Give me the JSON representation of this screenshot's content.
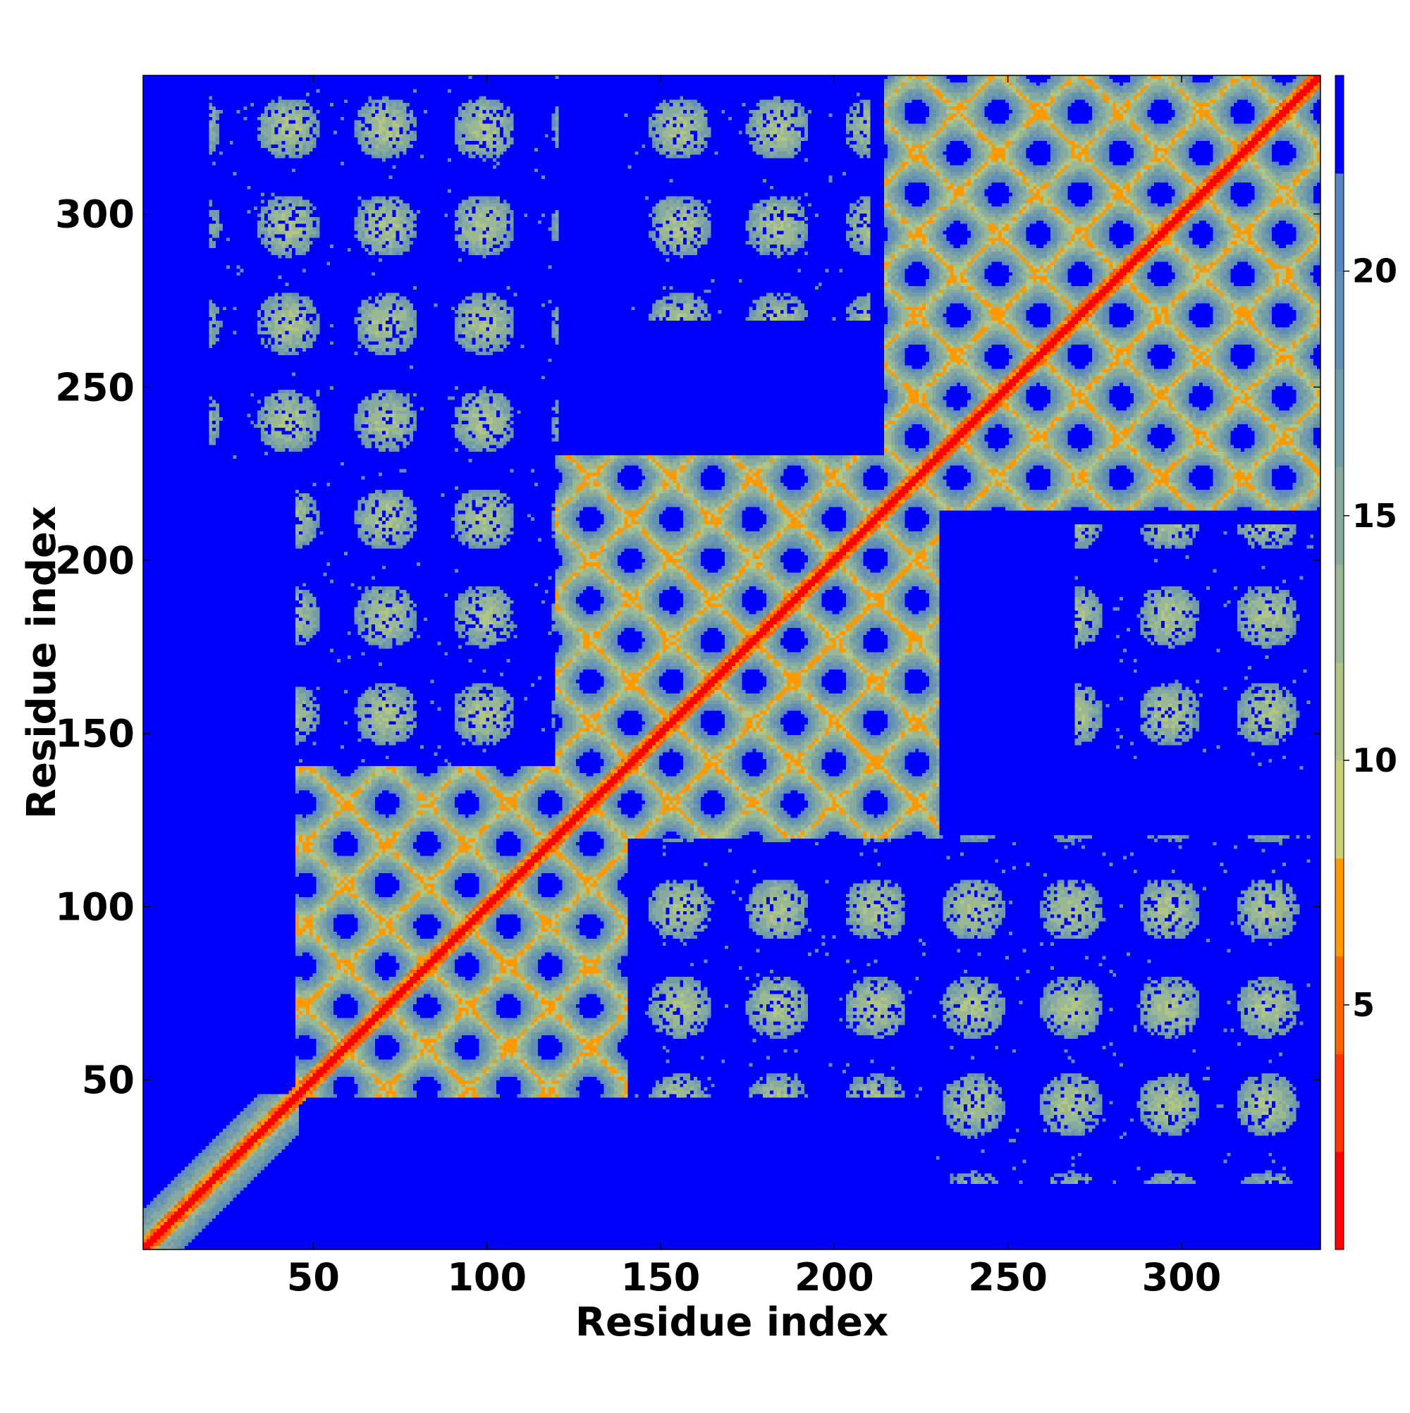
{
  "chart_data": {
    "type": "heatmap",
    "title": "",
    "xlabel": "Residue index",
    "ylabel": "Residue index",
    "n_residues": 340,
    "xlim": [
      1,
      340
    ],
    "ylim": [
      1,
      340
    ],
    "x_ticks": [
      50,
      100,
      150,
      200,
      250,
      300
    ],
    "y_ticks": [
      50,
      100,
      150,
      200,
      250,
      300
    ],
    "colorbar": {
      "ticks": [
        5,
        10,
        15,
        20
      ],
      "range": [
        0,
        24
      ],
      "levels": [
        {
          "to": 2,
          "color": "#ff0000"
        },
        {
          "to": 4,
          "color": "#ff3300"
        },
        {
          "to": 6,
          "color": "#ff6600"
        },
        {
          "to": 8,
          "color": "#ff9900"
        },
        {
          "to": 10,
          "color": "#c9d07a"
        },
        {
          "to": 12,
          "color": "#b1c586"
        },
        {
          "to": 14,
          "color": "#9bb894"
        },
        {
          "to": 16,
          "color": "#86aa9f"
        },
        {
          "to": 18,
          "color": "#739cab"
        },
        {
          "to": 20,
          "color": "#628fb6"
        },
        {
          "to": 22,
          "color": "#5685c0"
        },
        {
          "to": 24,
          "color": "#0000ff"
        }
      ]
    },
    "background_color": "#0000ff",
    "diagonal_color": "#ff0000",
    "contact_blocks": [
      {
        "x": [
          1,
          45
        ],
        "y": [
          1,
          45
        ],
        "type": "diagonal"
      },
      {
        "x": [
          45,
          140
        ],
        "y": [
          45,
          140
        ],
        "type": "dense"
      },
      {
        "x": [
          120,
          230
        ],
        "y": [
          120,
          230
        ],
        "type": "dense"
      },
      {
        "x": [
          215,
          340
        ],
        "y": [
          215,
          340
        ],
        "type": "dense"
      },
      {
        "x": [
          45,
          140
        ],
        "y": [
          140,
          220
        ],
        "type": "sparse"
      },
      {
        "x": [
          140,
          230
        ],
        "y": [
          45,
          120
        ],
        "type": "sparse"
      },
      {
        "x": [
          230,
          340
        ],
        "y": [
          20,
          120
        ],
        "type": "sparse"
      },
      {
        "x": [
          40,
          120
        ],
        "y": [
          270,
          340
        ],
        "type": "sparse"
      },
      {
        "x": [
          270,
          340
        ],
        "y": [
          140,
          210
        ],
        "type": "sparse"
      }
    ]
  }
}
